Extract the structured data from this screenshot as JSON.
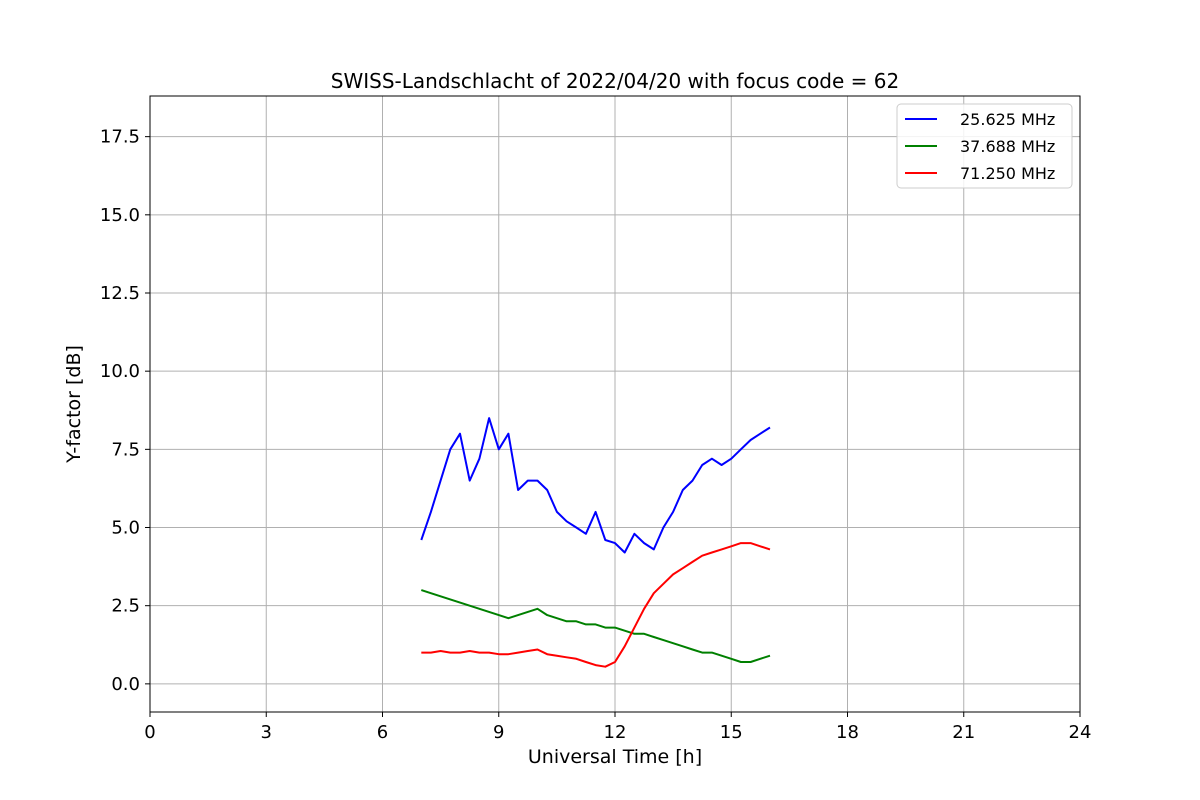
{
  "chart_data": {
    "type": "line",
    "title": "SWISS-Landschlacht of 2022/04/20 with focus code = 62",
    "xlabel": "Universal Time [h]",
    "ylabel": "Y-factor [dB]",
    "xlim": [
      0,
      24
    ],
    "ylim": [
      -0.9,
      18.8
    ],
    "xticks": [
      0,
      3,
      6,
      9,
      12,
      15,
      18,
      21,
      24
    ],
    "xtick_labels": [
      "0",
      "3",
      "6",
      "9",
      "12",
      "15",
      "18",
      "21",
      "24"
    ],
    "yticks": [
      0,
      2.5,
      5,
      7.5,
      10,
      12.5,
      15,
      17.5
    ],
    "ytick_labels": [
      "0.0",
      "2.5",
      "5.0",
      "7.5",
      "10.0",
      "12.5",
      "15.0",
      "17.5"
    ],
    "grid": true,
    "legend_position": "top-right",
    "series": [
      {
        "name": "25.625 MHz",
        "color": "#0000ff",
        "x": [
          7.0,
          7.25,
          7.5,
          7.75,
          8.0,
          8.25,
          8.5,
          8.75,
          9.0,
          9.25,
          9.5,
          9.75,
          10.0,
          10.25,
          10.5,
          10.75,
          11.0,
          11.25,
          11.5,
          11.75,
          12.0,
          12.25,
          12.5,
          12.75,
          13.0,
          13.25,
          13.5,
          13.75,
          14.0,
          14.25,
          14.5,
          14.75,
          15.0,
          15.25,
          15.5,
          15.75,
          16.0
        ],
        "values": [
          4.6,
          5.5,
          6.5,
          7.5,
          8.0,
          6.5,
          7.2,
          8.5,
          7.5,
          8.0,
          6.2,
          6.5,
          6.5,
          6.2,
          5.5,
          5.2,
          5.0,
          4.8,
          5.5,
          4.6,
          4.5,
          4.2,
          4.8,
          4.5,
          4.3,
          5.0,
          5.5,
          6.2,
          6.5,
          7.0,
          7.2,
          7.0,
          7.2,
          7.5,
          7.8,
          8.0,
          8.2
        ]
      },
      {
        "name": "37.688 MHz",
        "color": "#008000",
        "x": [
          7.0,
          7.25,
          7.5,
          7.75,
          8.0,
          8.25,
          8.5,
          8.75,
          9.0,
          9.25,
          9.5,
          9.75,
          10.0,
          10.25,
          10.5,
          10.75,
          11.0,
          11.25,
          11.5,
          11.75,
          12.0,
          12.25,
          12.5,
          12.75,
          13.0,
          13.25,
          13.5,
          13.75,
          14.0,
          14.25,
          14.5,
          14.75,
          15.0,
          15.25,
          15.5,
          15.75,
          16.0
        ],
        "values": [
          3.0,
          2.9,
          2.8,
          2.7,
          2.6,
          2.5,
          2.4,
          2.3,
          2.2,
          2.1,
          2.2,
          2.3,
          2.4,
          2.2,
          2.1,
          2.0,
          2.0,
          1.9,
          1.9,
          1.8,
          1.8,
          1.7,
          1.6,
          1.6,
          1.5,
          1.4,
          1.3,
          1.2,
          1.1,
          1.0,
          1.0,
          0.9,
          0.8,
          0.7,
          0.7,
          0.8,
          0.9
        ]
      },
      {
        "name": "71.250 MHz",
        "color": "#ff0000",
        "x": [
          7.0,
          7.25,
          7.5,
          7.75,
          8.0,
          8.25,
          8.5,
          8.75,
          9.0,
          9.25,
          9.5,
          9.75,
          10.0,
          10.25,
          10.5,
          10.75,
          11.0,
          11.25,
          11.5,
          11.75,
          12.0,
          12.25,
          12.5,
          12.75,
          13.0,
          13.25,
          13.5,
          13.75,
          14.0,
          14.25,
          14.5,
          14.75,
          15.0,
          15.25,
          15.5,
          15.75,
          16.0
        ],
        "values": [
          1.0,
          1.0,
          1.05,
          1.0,
          1.0,
          1.05,
          1.0,
          1.0,
          0.95,
          0.95,
          1.0,
          1.05,
          1.1,
          0.95,
          0.9,
          0.85,
          0.8,
          0.7,
          0.6,
          0.55,
          0.7,
          1.2,
          1.8,
          2.4,
          2.9,
          3.2,
          3.5,
          3.7,
          3.9,
          4.1,
          4.2,
          4.3,
          4.4,
          4.5,
          4.5,
          4.4,
          4.3
        ]
      }
    ]
  }
}
